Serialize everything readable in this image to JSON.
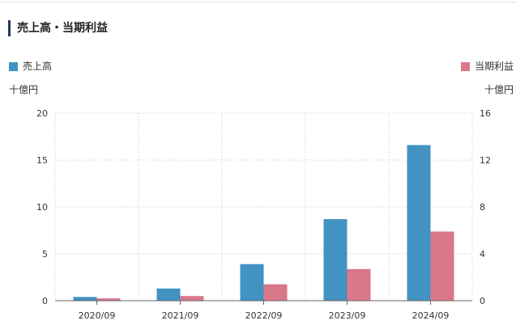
{
  "section": {
    "title": "売上高・当期利益"
  },
  "colors": {
    "sales": "#4292c2",
    "profit": "#d9788a",
    "title_bar": "#1f3a5f"
  },
  "legend": {
    "sales_label": "売上高",
    "profit_label": "当期利益"
  },
  "units": {
    "left": "十億円",
    "right": "十億円"
  },
  "chart_data": {
    "type": "bar",
    "categories": [
      "2020/09",
      "2021/09",
      "2022/09",
      "2023/09",
      "2024/09"
    ],
    "series": [
      {
        "name": "売上高",
        "axis": "left",
        "values": [
          0.4,
          1.3,
          3.9,
          8.7,
          16.6
        ]
      },
      {
        "name": "当期利益",
        "axis": "right",
        "values": [
          0.2,
          0.4,
          1.4,
          2.7,
          5.9
        ]
      }
    ],
    "y_left": {
      "min": 0,
      "max": 20,
      "ticks": [
        0,
        5,
        10,
        15,
        20
      ]
    },
    "y_right": {
      "min": 0,
      "max": 16,
      "ticks": [
        0,
        4,
        8,
        12,
        16
      ]
    },
    "grid": true,
    "legend_position": "top"
  }
}
